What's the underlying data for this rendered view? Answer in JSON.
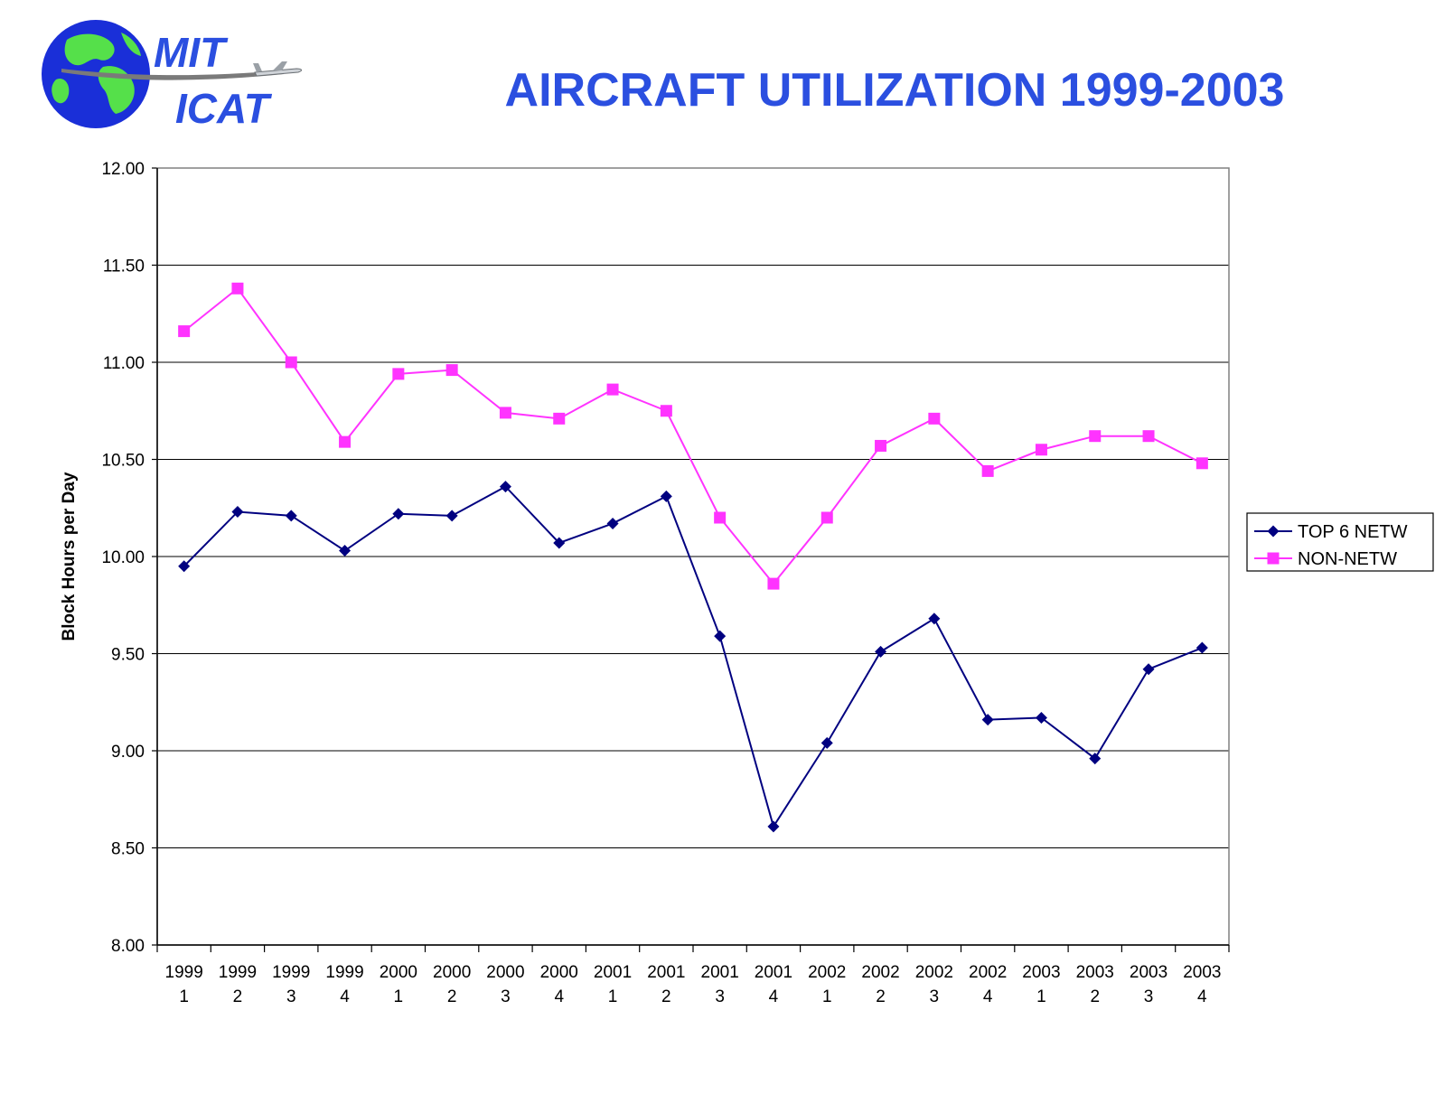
{
  "header": {
    "title": "AIRCRAFT UTILIZATION 1999-2003",
    "logo": {
      "line1": "MIT",
      "line2": "ICAT"
    }
  },
  "colors": {
    "title": "#2b4fe0",
    "series_top6": "#000080",
    "series_non": "#ff33ff",
    "globe_ocean": "#1a2fd8",
    "globe_land": "#55e04a"
  },
  "chart_data": {
    "type": "line",
    "title": "",
    "ylabel": "Block Hours per Day",
    "xlabel": "",
    "ylim": [
      8.0,
      12.0
    ],
    "yticks": [
      "8.00",
      "8.50",
      "9.00",
      "9.50",
      "10.00",
      "10.50",
      "11.00",
      "11.50",
      "12.00"
    ],
    "grid": "horizontal",
    "legend_position": "right",
    "categories": [
      {
        "year": "1999",
        "quarter": "1"
      },
      {
        "year": "1999",
        "quarter": "2"
      },
      {
        "year": "1999",
        "quarter": "3"
      },
      {
        "year": "1999",
        "quarter": "4"
      },
      {
        "year": "2000",
        "quarter": "1"
      },
      {
        "year": "2000",
        "quarter": "2"
      },
      {
        "year": "2000",
        "quarter": "3"
      },
      {
        "year": "2000",
        "quarter": "4"
      },
      {
        "year": "2001",
        "quarter": "1"
      },
      {
        "year": "2001",
        "quarter": "2"
      },
      {
        "year": "2001",
        "quarter": "3"
      },
      {
        "year": "2001",
        "quarter": "4"
      },
      {
        "year": "2002",
        "quarter": "1"
      },
      {
        "year": "2002",
        "quarter": "2"
      },
      {
        "year": "2002",
        "quarter": "3"
      },
      {
        "year": "2002",
        "quarter": "4"
      },
      {
        "year": "2003",
        "quarter": "1"
      },
      {
        "year": "2003",
        "quarter": "2"
      },
      {
        "year": "2003",
        "quarter": "3"
      },
      {
        "year": "2003",
        "quarter": "4"
      }
    ],
    "series": [
      {
        "name": "TOP 6 NETW",
        "marker": "diamond",
        "color": "#000080",
        "values": [
          9.95,
          10.23,
          10.21,
          10.03,
          10.22,
          10.21,
          10.36,
          10.07,
          10.17,
          10.31,
          9.59,
          8.61,
          9.04,
          9.51,
          9.68,
          9.16,
          9.17,
          8.96,
          9.42,
          9.53
        ]
      },
      {
        "name": "NON-NETW",
        "marker": "square",
        "color": "#ff33ff",
        "values": [
          11.16,
          11.38,
          11.0,
          10.59,
          10.94,
          10.96,
          10.74,
          10.71,
          10.86,
          10.75,
          10.2,
          9.86,
          10.2,
          10.57,
          10.71,
          10.44,
          10.55,
          10.62,
          10.62,
          10.48
        ]
      }
    ]
  }
}
